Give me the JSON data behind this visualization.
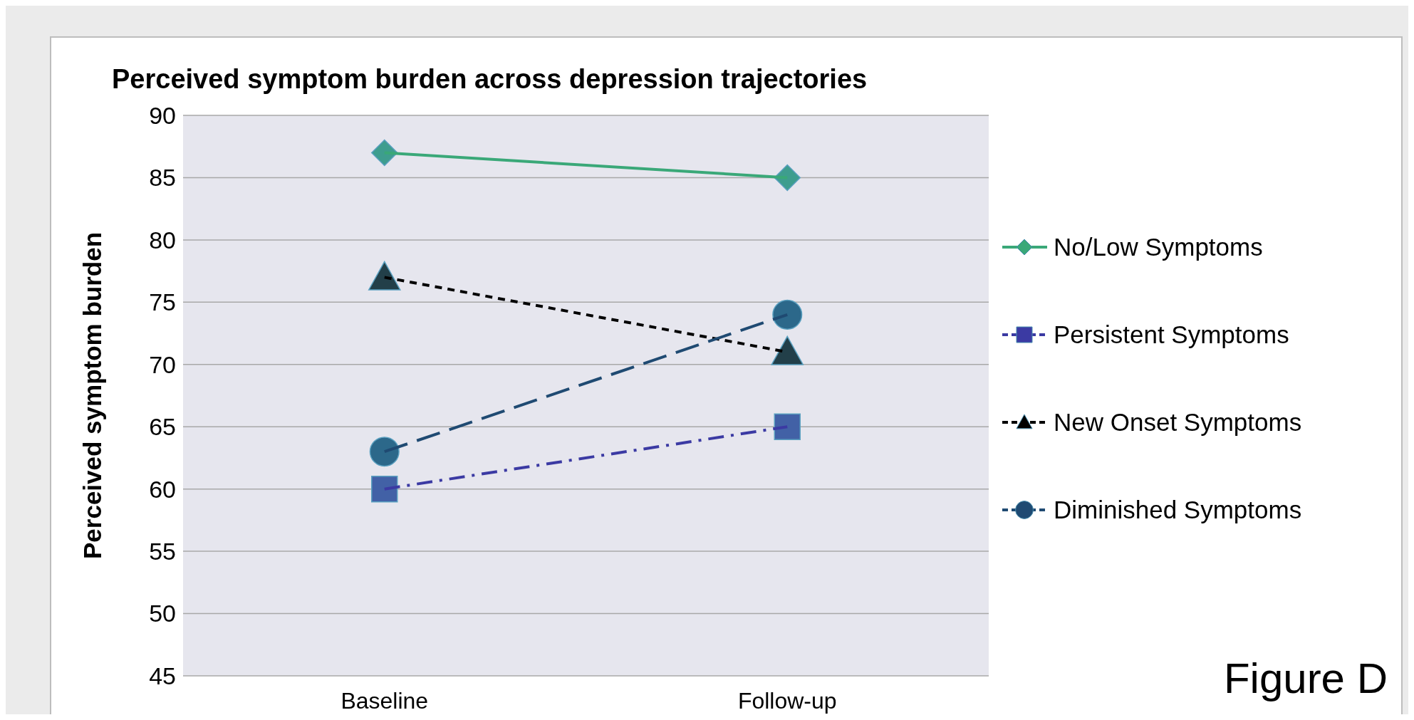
{
  "chart_data": {
    "type": "line",
    "title": "Perceived symptom burden across depression trajectories",
    "ylabel": "Perceived symptom burden",
    "categories": [
      "Baseline",
      "Follow-up"
    ],
    "series": [
      {
        "name": "No/Low Symptoms",
        "color": "#3aa878",
        "values": [
          87,
          85
        ],
        "marker": "diamond",
        "line_style": "solid"
      },
      {
        "name": "Persistent Symptoms",
        "color": "#3b3aa3",
        "values": [
          60,
          65
        ],
        "marker": "square",
        "line_style": "dashdot"
      },
      {
        "name": "New Onset Symptoms",
        "color": "#000000",
        "values": [
          77,
          71
        ],
        "marker": "triangle",
        "line_style": "dashed"
      },
      {
        "name": "Diminished Symptoms",
        "color": "#1f4a72",
        "values": [
          63,
          74
        ],
        "marker": "circle",
        "line_style": "longdash"
      }
    ],
    "ylim": [
      45,
      90
    ],
    "yticks": [
      45,
      50,
      55,
      60,
      65,
      70,
      75,
      80,
      85,
      90
    ],
    "grid": "y",
    "legend": "right",
    "annotations": [
      "Figure D"
    ]
  }
}
